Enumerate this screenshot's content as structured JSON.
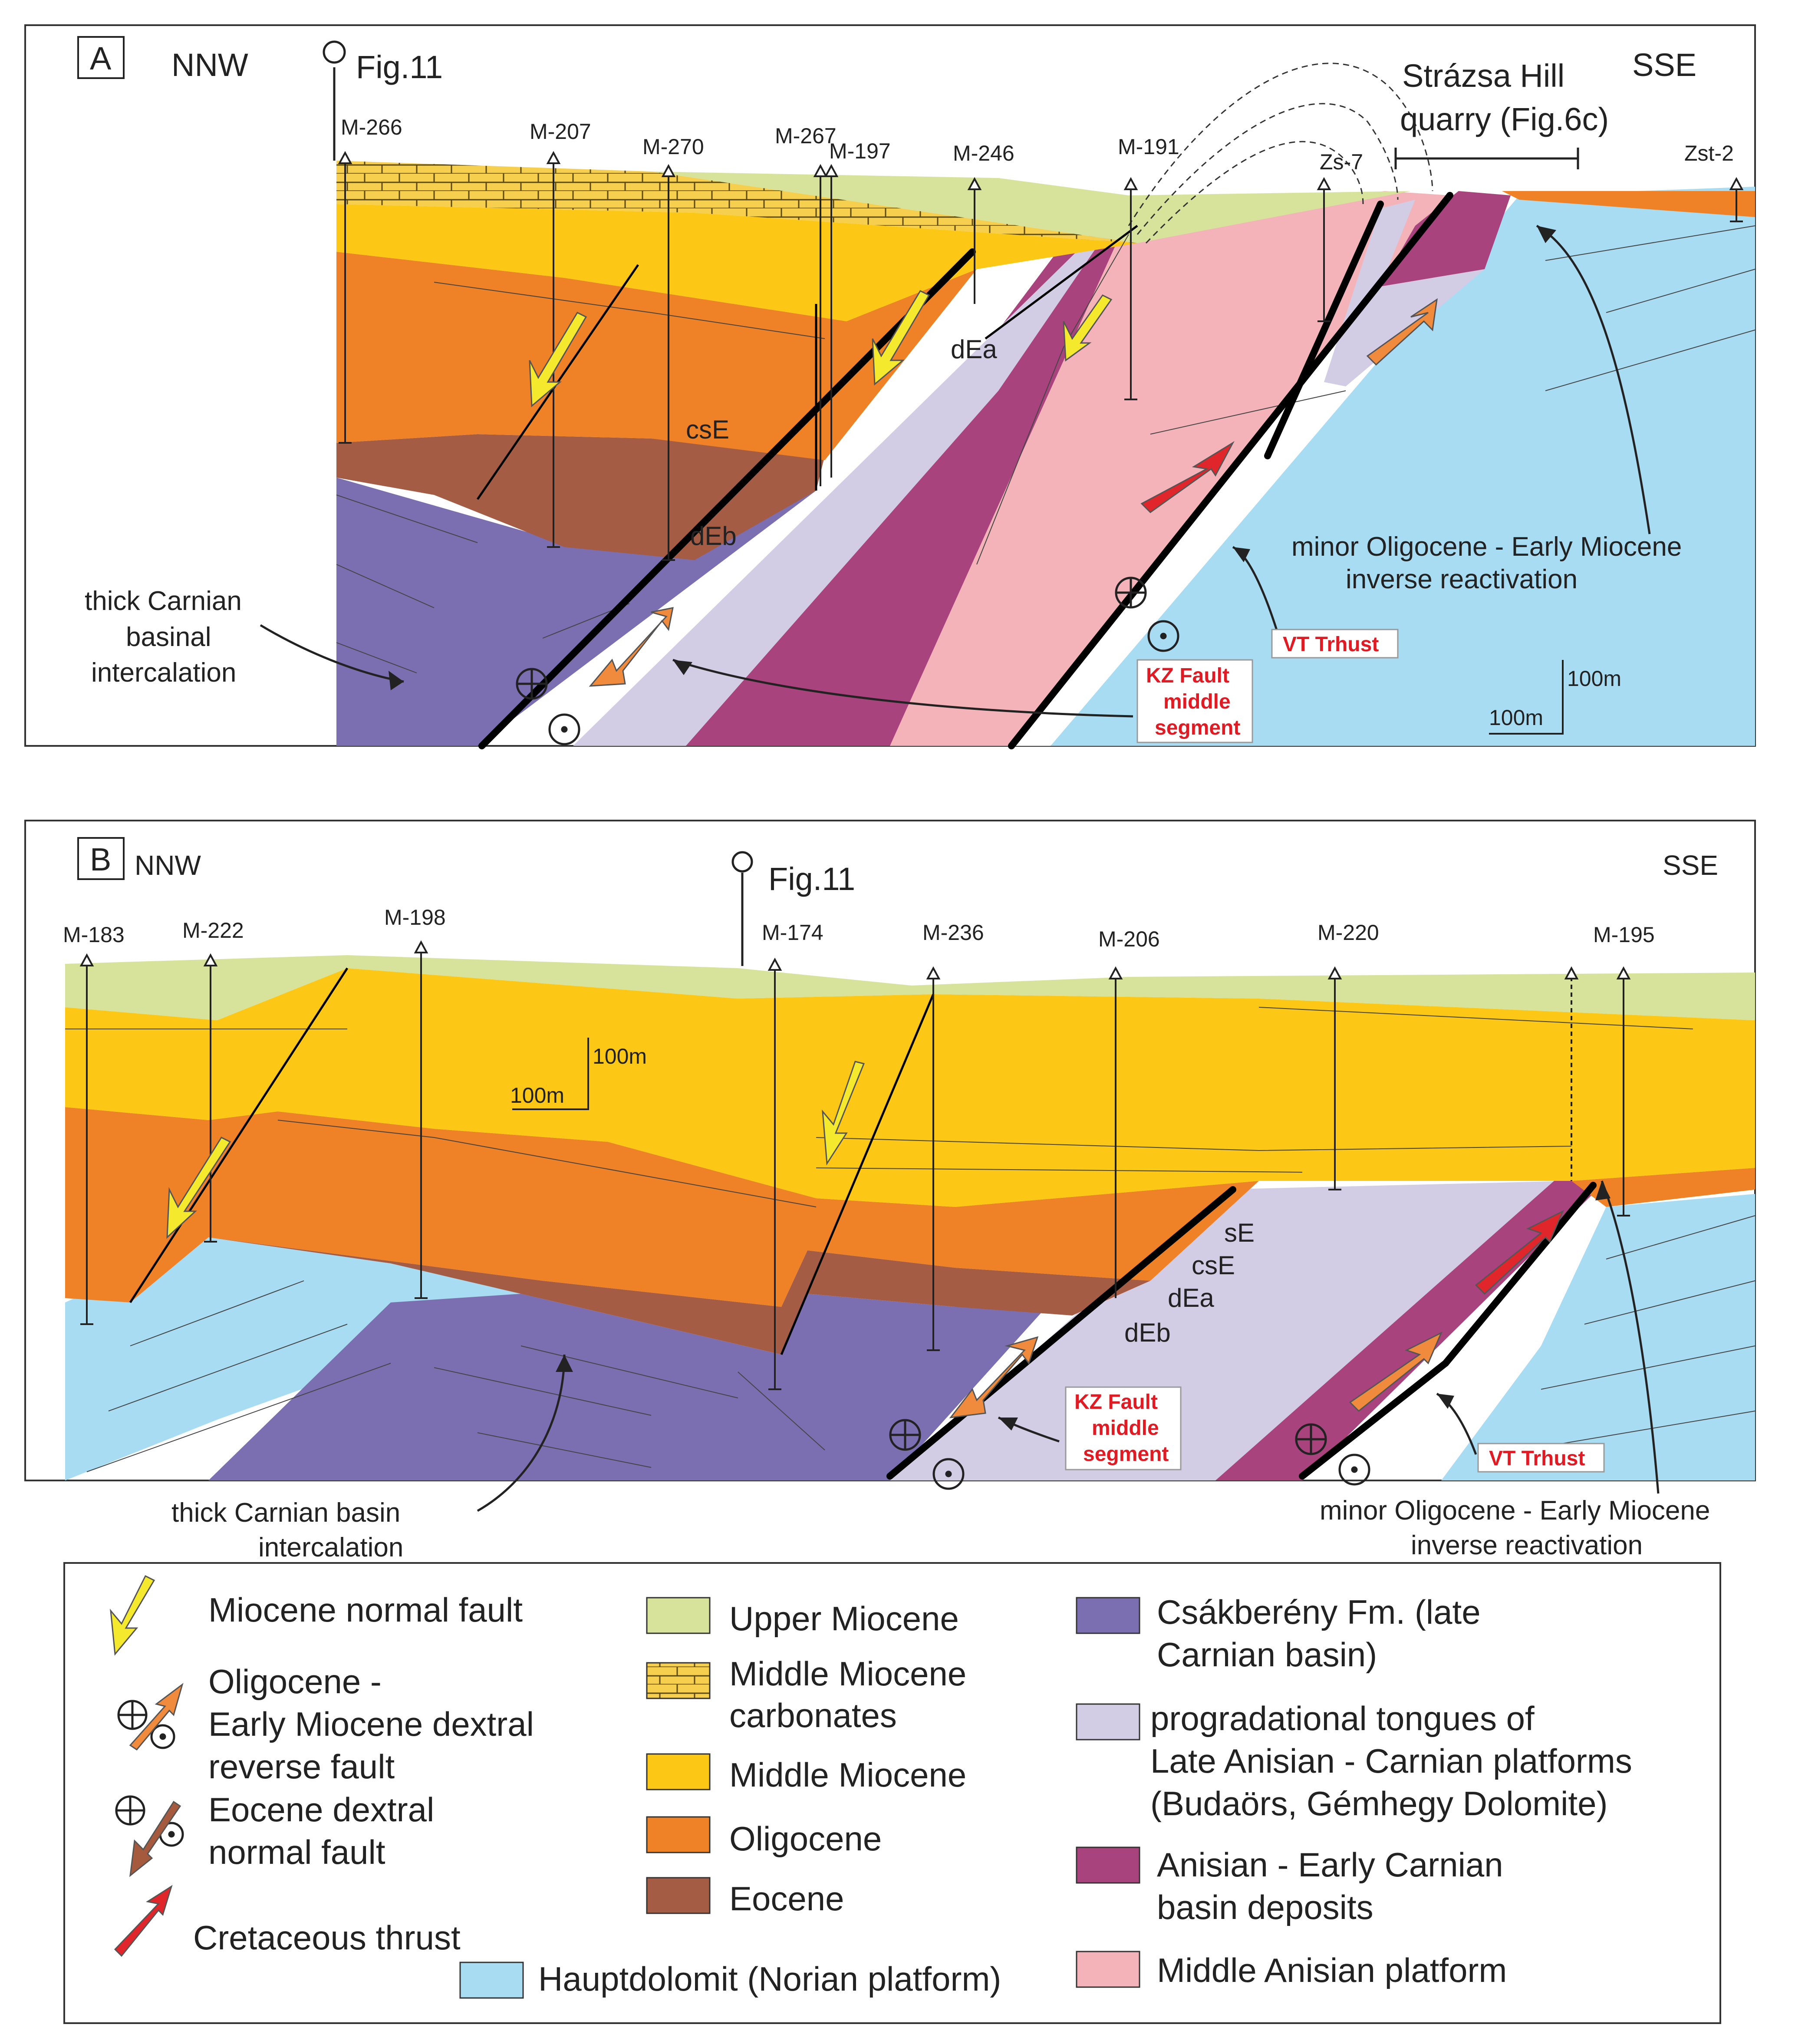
{
  "colors": {
    "upper_miocene": "#d7e39a",
    "middle_miocene_carbonates": "#f5cf4d",
    "middle_miocene": "#fcc815",
    "oligocene": "#ef8127",
    "eocene": "#a45c44",
    "hauptdolomit": "#a8dcf2",
    "csakbereny": "#7b6fb2",
    "progradational": "#d2cce5",
    "anisian_basin": "#a9437e",
    "middle_anisian": "#f3b3b9",
    "normal_fault_arrow": "#f4e92c",
    "reverse_fault_arrow": "#f08a3c",
    "eocene_fault_arrow": "#a55a3e",
    "thrust_arrow": "#e1262b",
    "red_label": "#e01b24"
  },
  "panelA": {
    "panel_letter": "A",
    "left_direction": "NNW",
    "right_direction": "SSE",
    "fig_ref": "Fig.11",
    "quarry_line1": "Strázsa Hill",
    "quarry_line2": "quarry (Fig.6c)",
    "wells": [
      "M-266",
      "M-207",
      "M-270",
      "M-267",
      "M-197",
      "M-246",
      "M-191",
      "Zs-7",
      "Zst-2"
    ],
    "units": {
      "csE": "csE",
      "dEa": "dEa",
      "dEb": "dEb"
    },
    "annotation_carnian": [
      "thick Carnian",
      "basinal",
      "intercalation"
    ],
    "annotation_reactivation": [
      "minor Oligocene - Early Miocene",
      "inverse reactivation"
    ],
    "kz_fault": [
      "KZ Fault",
      "middle",
      "segment"
    ],
    "vt_thrust": "VT Trhust",
    "scale_v": "100m",
    "scale_h": "100m"
  },
  "panelB": {
    "panel_letter": "B",
    "left_direction": "NNW",
    "right_direction": "SSE",
    "fig_ref": "Fig.11",
    "wells": [
      "M-183",
      "M-222",
      "M-198",
      "M-174",
      "M-236",
      "M-206",
      "M-220",
      "M-195"
    ],
    "units": {
      "sE": "sE",
      "csE": "csE",
      "dEa": "dEa",
      "dEb": "dEb"
    },
    "scale_v": "100m",
    "scale_h": "100m",
    "kz_fault": [
      "KZ Fault",
      "middle",
      "segment"
    ],
    "vt_thrust": "VT Trhust",
    "annotation_carnian": [
      "thick Carnian basin",
      "intercalation"
    ],
    "annotation_reactivation": [
      "minor Oligocene - Early Miocene",
      "inverse reactivation"
    ]
  },
  "legend": {
    "miocene_normal_fault": "Miocene normal fault",
    "oligocene_reverse_fault": [
      "Oligocene -",
      "Early Miocene dextral",
      "reverse fault"
    ],
    "eocene_normal_fault": [
      "Eocene dextral",
      "normal fault"
    ],
    "cretaceous_thrust": "Cretaceous thrust",
    "upper_miocene": "Upper Miocene",
    "middle_miocene_carbonates": [
      "Middle Miocene",
      "carbonates"
    ],
    "middle_miocene": "Middle Miocene",
    "oligocene": "Oligocene",
    "eocene": "Eocene",
    "hauptdolomit": "Hauptdolomit (Norian platform)",
    "csakbereny": [
      "Csákberény Fm. (late",
      "Carnian basin)"
    ],
    "progradational": [
      "progradational tongues of",
      "Late Anisian - Carnian platforms",
      "(Budaörs, Gémhegy Dolomite)"
    ],
    "anisian_basin": [
      "Anisian - Early Carnian",
      "basin deposits"
    ],
    "middle_anisian": "Middle Anisian platform"
  }
}
